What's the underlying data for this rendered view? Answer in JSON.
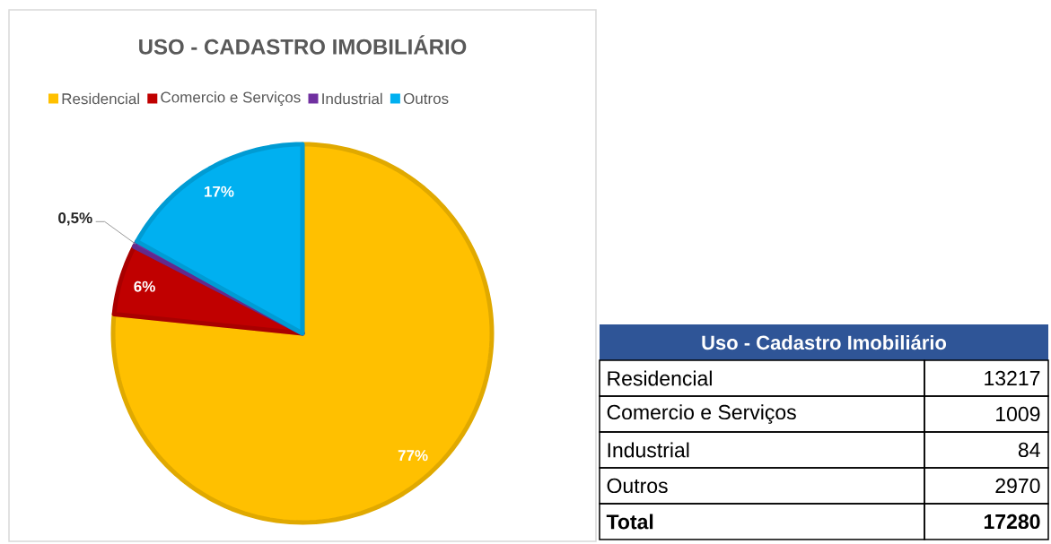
{
  "chart_data": [
    {
      "type": "pie",
      "title": "USO - CADASTRO IMOBILIÁRIO",
      "categories": [
        "Residencial",
        "Comercio e Serviços",
        "Industrial",
        "Outros"
      ],
      "values": [
        77,
        6,
        0.5,
        17
      ],
      "colors": [
        "#ffc000",
        "#c00000",
        "#7030a0",
        "#00b0f0"
      ],
      "value_labels": [
        "77%",
        "6%",
        "0,5%",
        "17%"
      ],
      "legend": "top"
    },
    {
      "type": "other",
      "title": "Uso - Cadastro Imobiliário",
      "categories": [
        "Residencial",
        "Comercio e Serviços",
        "Industrial",
        "Outros",
        "Total"
      ],
      "values": [
        13217,
        1009,
        84,
        2970,
        17280
      ],
      "data_labels": true
    }
  ]
}
